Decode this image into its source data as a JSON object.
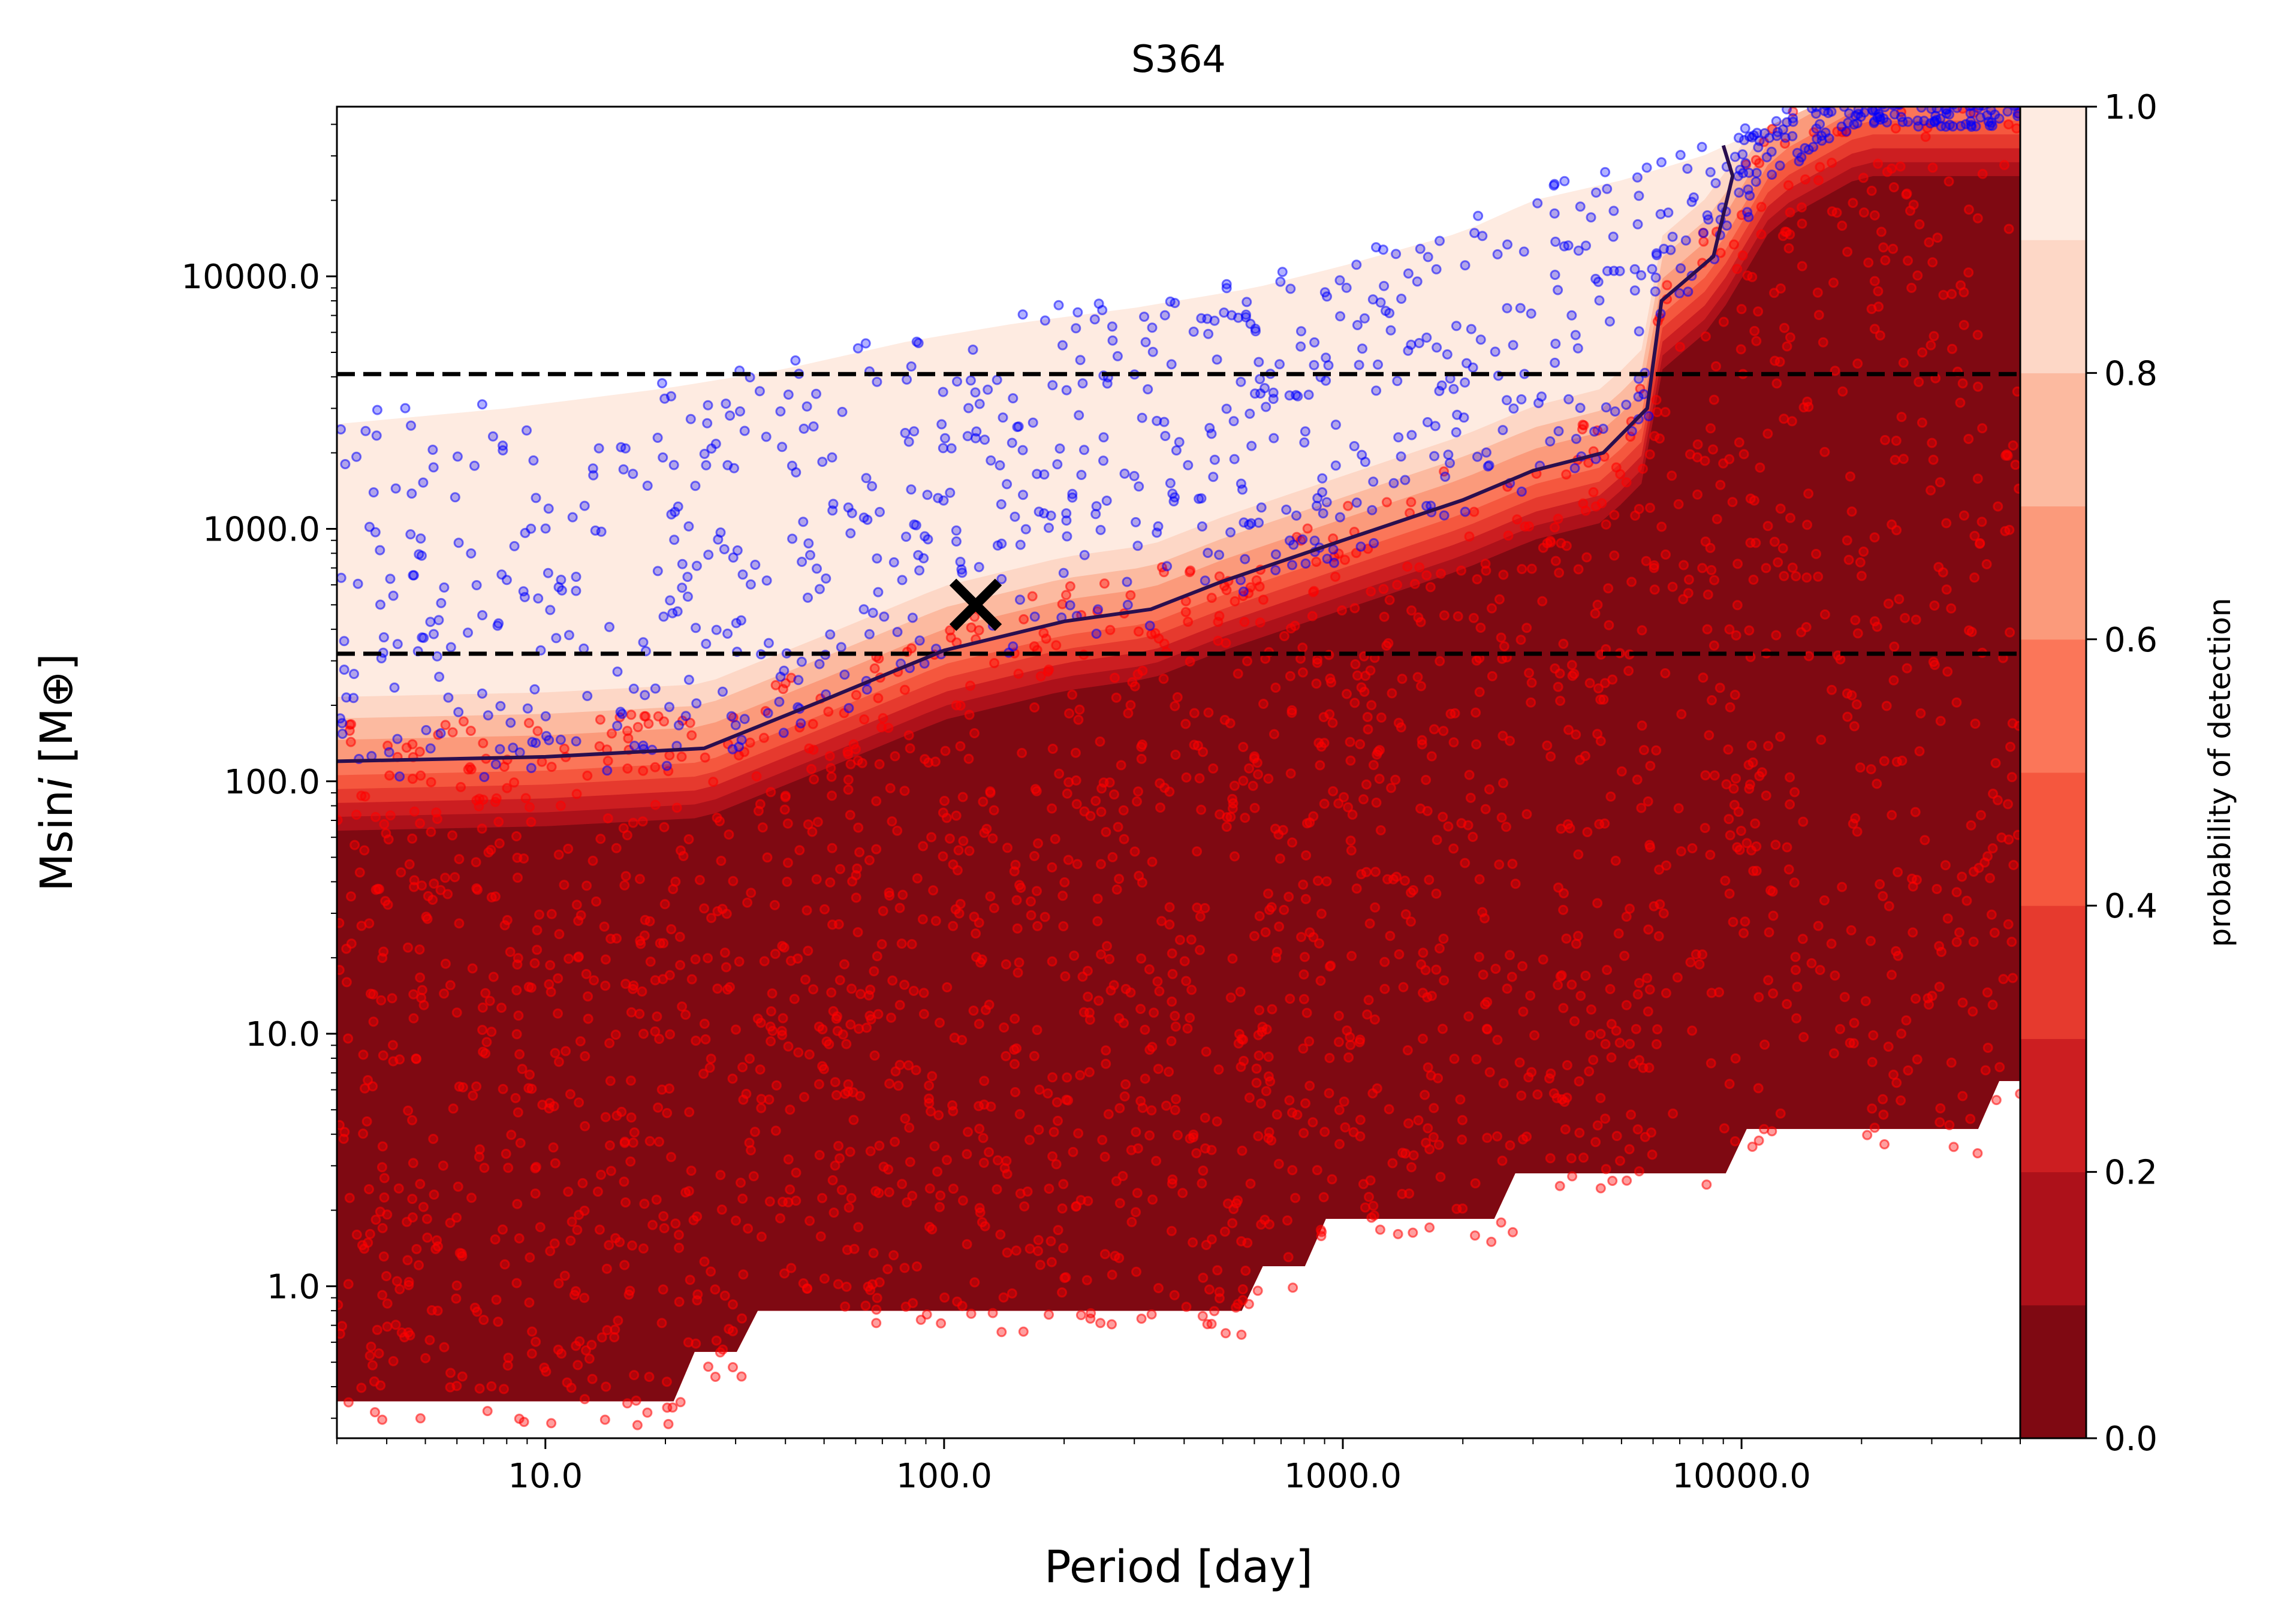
{
  "chart_data": {
    "type": "scatter",
    "title": "S364",
    "xlabel": "Period [day]",
    "ylabel_main": "Msin",
    "ylabel_italic": "i",
    "ylabel_unit": " [M⊕]",
    "x_scale": "log",
    "y_scale": "log",
    "xlim": [
      3.0,
      50000
    ],
    "ylim": [
      0.25,
      47000
    ],
    "x_ticks": [
      {
        "value": 10,
        "label": "10.0"
      },
      {
        "value": 100,
        "label": "100.0"
      },
      {
        "value": 1000,
        "label": "1000.0"
      },
      {
        "value": 10000,
        "label": "10000.0"
      }
    ],
    "y_ticks": [
      {
        "value": 1,
        "label": "1.0"
      },
      {
        "value": 10,
        "label": "10.0"
      },
      {
        "value": 100,
        "label": "100.0"
      },
      {
        "value": 1000,
        "label": "1000.0"
      },
      {
        "value": 10000,
        "label": "10000.0"
      }
    ],
    "grid": false,
    "colorbar": {
      "label": "probability of detection",
      "range": [
        0,
        1
      ],
      "ticks": [
        {
          "value": 0.0,
          "label": "0.0"
        },
        {
          "value": 0.2,
          "label": "0.2"
        },
        {
          "value": 0.4,
          "label": "0.4"
        },
        {
          "value": 0.6,
          "label": "0.6"
        },
        {
          "value": 0.8,
          "label": "0.8"
        },
        {
          "value": 1.0,
          "label": "1.0"
        }
      ],
      "levels": [
        0,
        0.1,
        0.2,
        0.3,
        0.4,
        0.5,
        0.6,
        0.7,
        0.8,
        0.9,
        1.0
      ],
      "colors": [
        "#7f0912",
        "#ad111a",
        "#cc1e21",
        "#e63a2e",
        "#f5573e",
        "#fb7659",
        "#fb9a7b",
        "#fcbaa0",
        "#fdd7c6",
        "#feebe1"
      ]
    },
    "colors": {
      "detected": "#0000ff",
      "not_detected": "#ff0000",
      "contour_line": "#2a0f4f",
      "marker": "#000000"
    },
    "hlines": [
      {
        "y": 4100,
        "style": "dashed"
      },
      {
        "y": 320,
        "style": "dashed"
      }
    ],
    "planet_marker": {
      "x": 120,
      "y": 500,
      "symbol": "x"
    },
    "contour_50": {
      "x": [
        3.0,
        10,
        25,
        50,
        100,
        200,
        330,
        500,
        1000,
        2000,
        3000,
        4500,
        5800,
        6300,
        8500,
        9500,
        9000
      ],
      "y": [
        120,
        125,
        135,
        210,
        330,
        430,
        480,
        620,
        900,
        1300,
        1700,
        2000,
        3000,
        8000,
        12000,
        25000,
        33000
      ]
    },
    "simulated_region_bottom": {
      "x": [
        3.0,
        22,
        22,
        32,
        330,
        600,
        900,
        1800,
        2700,
        6800,
        10000,
        25000,
        40000,
        50000
      ],
      "y": [
        0.35,
        0.35,
        0.55,
        0.8,
        0.8,
        1.2,
        1.85,
        1.85,
        2.8,
        2.8,
        4.2,
        4.2,
        6.5,
        6.5
      ]
    },
    "series": [
      {
        "name": "",
        "role": "not_detected",
        "count": 2400,
        "seed": 7
      },
      {
        "name": "",
        "role": "detected",
        "count": 900,
        "seed": 13
      }
    ]
  }
}
